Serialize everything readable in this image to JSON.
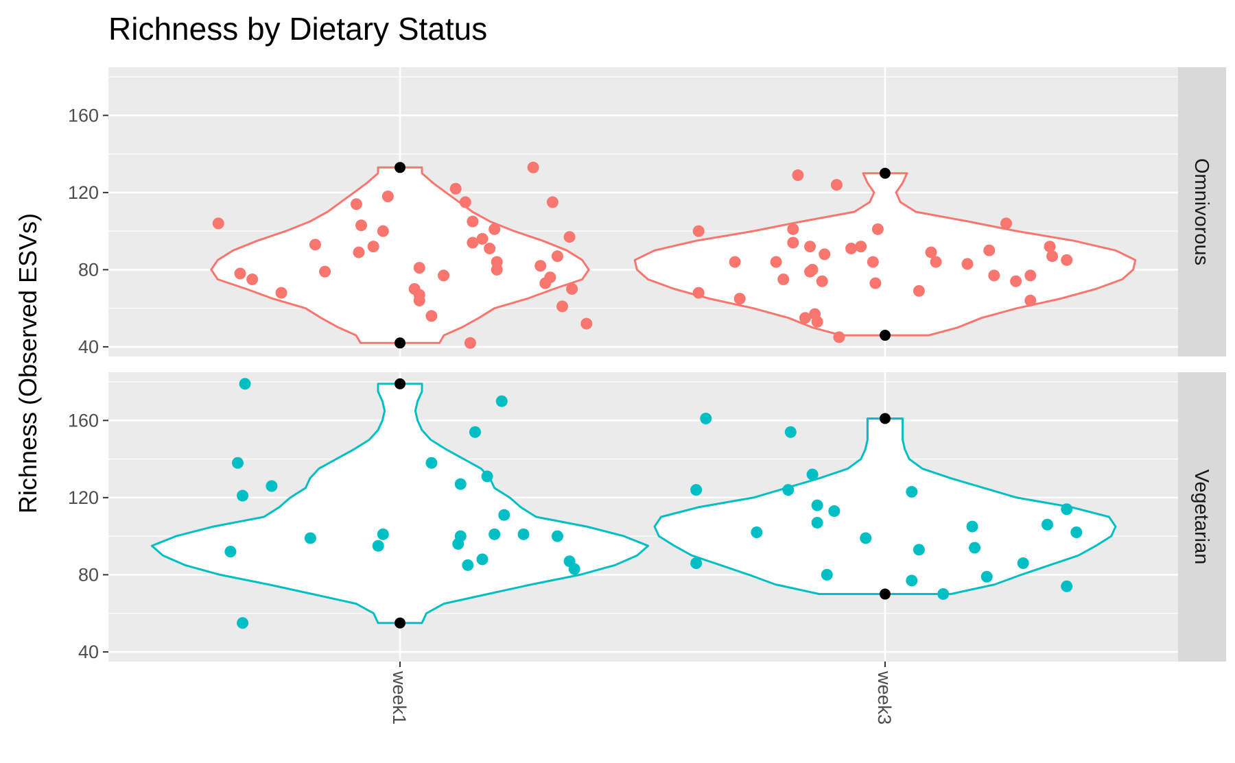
{
  "chart_data": {
    "type": "violin",
    "title": "Richness by Dietary Status",
    "xlabel": "",
    "ylabel": "Richness (Observed ESVs)",
    "categories": [
      "week1",
      "week3"
    ],
    "y_ticks": [
      40,
      80,
      120,
      160
    ],
    "ylim": [
      35,
      185
    ],
    "grid": true,
    "facets": [
      {
        "label": "Omnivorous",
        "color": "#F8766D",
        "violins": [
          {
            "category": "week1",
            "min": 42,
            "max": 133,
            "density": [
              [
                42,
                0.18
              ],
              [
                46,
                0.2
              ],
              [
                50,
                0.28
              ],
              [
                55,
                0.36
              ],
              [
                60,
                0.43
              ],
              [
                65,
                0.58
              ],
              [
                70,
                0.7
              ],
              [
                75,
                0.83
              ],
              [
                80,
                0.86
              ],
              [
                85,
                0.83
              ],
              [
                90,
                0.76
              ],
              [
                95,
                0.65
              ],
              [
                100,
                0.52
              ],
              [
                105,
                0.41
              ],
              [
                110,
                0.33
              ],
              [
                115,
                0.27
              ],
              [
                120,
                0.21
              ],
              [
                125,
                0.15
              ],
              [
                130,
                0.1
              ],
              [
                133,
                0.1
              ]
            ],
            "points": [
              [
                -0.75,
                104
              ],
              [
                -0.66,
                78
              ],
              [
                -0.61,
                75
              ],
              [
                -0.49,
                68
              ],
              [
                -0.35,
                93
              ],
              [
                -0.31,
                79
              ],
              [
                -0.18,
                114
              ],
              [
                -0.17,
                89
              ],
              [
                -0.16,
                103
              ],
              [
                -0.11,
                92
              ],
              [
                -0.07,
                100
              ],
              [
                -0.05,
                118
              ],
              [
                0,
                42
              ],
              [
                0.0,
                133
              ],
              [
                0.06,
                70
              ],
              [
                0.08,
                67
              ],
              [
                0.08,
                64
              ],
              [
                0.08,
                81
              ],
              [
                0.13,
                56
              ],
              [
                0.18,
                77
              ],
              [
                0.3,
                94
              ],
              [
                0.3,
                105
              ],
              [
                0.34,
                96
              ],
              [
                0.37,
                91
              ],
              [
                0.4,
                84
              ],
              [
                0.39,
                101
              ],
              [
                0.4,
                80
              ],
              [
                0.55,
                133
              ],
              [
                0.58,
                82
              ],
              [
                0.6,
                73
              ],
              [
                0.62,
                76
              ],
              [
                0.63,
                115
              ],
              [
                0.65,
                87
              ],
              [
                0.67,
                61
              ],
              [
                0.7,
                97
              ],
              [
                0.71,
                70
              ],
              [
                0.77,
                52
              ],
              [
                0.29,
                42
              ],
              [
                0.23,
                122
              ],
              [
                0.27,
                115
              ]
            ]
          },
          {
            "category": "week3",
            "min": 46,
            "max": 130,
            "density": [
              [
                46,
                0.2
              ],
              [
                50,
                0.33
              ],
              [
                55,
                0.44
              ],
              [
                60,
                0.6
              ],
              [
                65,
                0.8
              ],
              [
                70,
                0.96
              ],
              [
                75,
                1.08
              ],
              [
                80,
                1.13
              ],
              [
                85,
                1.14
              ],
              [
                90,
                1.05
              ],
              [
                95,
                0.86
              ],
              [
                100,
                0.6
              ],
              [
                105,
                0.38
              ],
              [
                110,
                0.14
              ],
              [
                115,
                0.07
              ],
              [
                120,
                0.05
              ],
              [
                125,
                0.08
              ],
              [
                130,
                0.1
              ]
            ],
            "points": [
              [
                -0.77,
                100
              ],
              [
                -0.77,
                68
              ],
              [
                -0.62,
                84
              ],
              [
                -0.6,
                65
              ],
              [
                -0.45,
                84
              ],
              [
                -0.42,
                75
              ],
              [
                -0.38,
                101
              ],
              [
                -0.38,
                94
              ],
              [
                -0.36,
                129
              ],
              [
                -0.33,
                55
              ],
              [
                -0.31,
                92
              ],
              [
                -0.31,
                79
              ],
              [
                -0.3,
                80
              ],
              [
                -0.29,
                57
              ],
              [
                -0.28,
                53
              ],
              [
                -0.25,
                88
              ],
              [
                -0.26,
                74
              ],
              [
                -0.2,
                124
              ],
              [
                -0.19,
                45
              ],
              [
                -0.14,
                91
              ],
              [
                -0.1,
                92
              ],
              [
                -0.05,
                84
              ],
              [
                -0.04,
                73
              ],
              [
                -0.03,
                101
              ],
              [
                0.0,
                130
              ],
              [
                0.0,
                46
              ],
              [
                0.14,
                69
              ],
              [
                0.19,
                89
              ],
              [
                0.21,
                84
              ],
              [
                0.34,
                83
              ],
              [
                0.43,
                90
              ],
              [
                0.45,
                77
              ],
              [
                0.5,
                104
              ],
              [
                0.54,
                74
              ],
              [
                0.6,
                77
              ],
              [
                0.6,
                64
              ],
              [
                0.68,
                92
              ],
              [
                0.69,
                87
              ],
              [
                0.75,
                85
              ]
            ]
          }
        ]
      },
      {
        "label": "Vegetarian",
        "color": "#00BFC4",
        "violins": [
          {
            "category": "week1",
            "min": 55,
            "max": 179,
            "density": [
              [
                55,
                0.1
              ],
              [
                60,
                0.12
              ],
              [
                65,
                0.2
              ],
              [
                70,
                0.4
              ],
              [
                75,
                0.6
              ],
              [
                80,
                0.82
              ],
              [
                85,
                0.98
              ],
              [
                90,
                1.08
              ],
              [
                95,
                1.13
              ],
              [
                100,
                1.02
              ],
              [
                105,
                0.85
              ],
              [
                110,
                0.62
              ],
              [
                115,
                0.55
              ],
              [
                120,
                0.5
              ],
              [
                125,
                0.43
              ],
              [
                130,
                0.41
              ],
              [
                135,
                0.37
              ],
              [
                140,
                0.29
              ],
              [
                145,
                0.21
              ],
              [
                150,
                0.14
              ],
              [
                155,
                0.1
              ],
              [
                160,
                0.08
              ],
              [
                165,
                0.07
              ],
              [
                170,
                0.08
              ],
              [
                175,
                0.1
              ],
              [
                179,
                0.1
              ]
            ],
            "points": [
              [
                -0.7,
                92
              ],
              [
                -0.67,
                138
              ],
              [
                -0.65,
                121
              ],
              [
                -0.65,
                55
              ],
              [
                -0.64,
                179
              ],
              [
                -0.53,
                126
              ],
              [
                -0.37,
                99
              ],
              [
                -0.09,
                95
              ],
              [
                -0.07,
                101
              ],
              [
                0.0,
                179
              ],
              [
                0.0,
                55
              ],
              [
                0.13,
                138
              ],
              [
                0.24,
                96
              ],
              [
                0.25,
                100
              ],
              [
                0.25,
                127
              ],
              [
                0.28,
                85
              ],
              [
                0.31,
                154
              ],
              [
                0.34,
                88
              ],
              [
                0.36,
                131
              ],
              [
                0.39,
                101
              ],
              [
                0.42,
                170
              ],
              [
                0.43,
                111
              ],
              [
                0.51,
                101
              ],
              [
                0.65,
                100
              ],
              [
                0.7,
                87
              ],
              [
                0.72,
                83
              ]
            ]
          },
          {
            "category": "week3",
            "min": 70,
            "max": 161,
            "density": [
              [
                70,
                0.3
              ],
              [
                75,
                0.5
              ],
              [
                80,
                0.62
              ],
              [
                85,
                0.75
              ],
              [
                90,
                0.88
              ],
              [
                95,
                0.96
              ],
              [
                100,
                1.03
              ],
              [
                105,
                1.05
              ],
              [
                110,
                1.02
              ],
              [
                115,
                0.85
              ],
              [
                120,
                0.6
              ],
              [
                125,
                0.45
              ],
              [
                130,
                0.3
              ],
              [
                135,
                0.17
              ],
              [
                140,
                0.11
              ],
              [
                145,
                0.09
              ],
              [
                150,
                0.08
              ],
              [
                155,
                0.08
              ],
              [
                161,
                0.08
              ]
            ],
            "points": [
              [
                -0.78,
                124
              ],
              [
                -0.78,
                86
              ],
              [
                -0.74,
                161
              ],
              [
                -0.53,
                102
              ],
              [
                -0.4,
                124
              ],
              [
                -0.39,
                154
              ],
              [
                -0.3,
                132
              ],
              [
                -0.28,
                116
              ],
              [
                -0.28,
                107
              ],
              [
                -0.24,
                80
              ],
              [
                -0.21,
                113
              ],
              [
                -0.08,
                99
              ],
              [
                0.0,
                161
              ],
              [
                0.0,
                70
              ],
              [
                0.11,
                77
              ],
              [
                0.11,
                123
              ],
              [
                0.14,
                93
              ],
              [
                0.24,
                70
              ],
              [
                0.36,
                105
              ],
              [
                0.37,
                94
              ],
              [
                0.42,
                79
              ],
              [
                0.57,
                86
              ],
              [
                0.67,
                106
              ],
              [
                0.75,
                114
              ],
              [
                0.75,
                74
              ],
              [
                0.79,
                102
              ]
            ]
          }
        ]
      }
    ]
  }
}
